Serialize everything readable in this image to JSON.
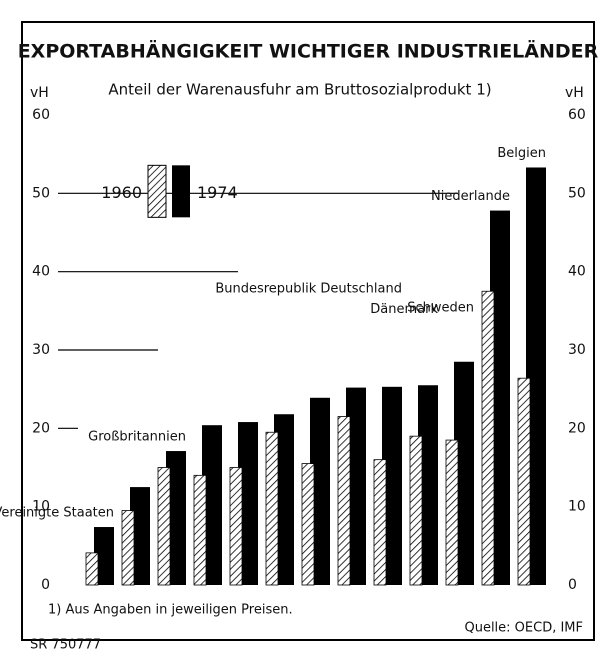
{
  "chart_data": {
    "type": "bar",
    "title": "EXPORTABHÄNGIGKEIT WICHTIGER INDUSTRIELÄNDER",
    "subtitle": "Anteil der Warenausfuhr am Bruttosozialprodukt 1)",
    "y_label": "vH",
    "y2_label": "vH",
    "categories": [
      "Vereinigte Staaten",
      null,
      "Großbritannien",
      null,
      null,
      null,
      null,
      null,
      "Bundesrepublik Deutschland",
      "Dänemark",
      "Schweden",
      "Niederlande",
      "Belgien"
    ],
    "series": [
      {
        "name": "1960",
        "color": "#000000",
        "hatch": true,
        "values": [
          4.1,
          9.5,
          15,
          14,
          15,
          19.5,
          15.5,
          21.5,
          16,
          19,
          18.5,
          37.5,
          26.4
        ]
      },
      {
        "name": "1974",
        "color": "#000000",
        "values": [
          7.4,
          12.5,
          17.1,
          20.4,
          20.8,
          21.8,
          23.9,
          25.2,
          25.3,
          25.5,
          28.5,
          47.8,
          53.3
        ]
      }
    ],
    "ylim": [
      0,
      60
    ],
    "yticks": [
      0,
      10,
      20,
      30,
      40,
      50,
      60
    ],
    "y2lim": [
      0,
      60
    ],
    "y2ticks": [
      0,
      10,
      20,
      30,
      40,
      50,
      60
    ],
    "grid": true,
    "footnote": "1) Aus Angaben in jeweiligen Preisen.",
    "source": "Quelle: OECD, IMF",
    "code": "SR 750777"
  }
}
